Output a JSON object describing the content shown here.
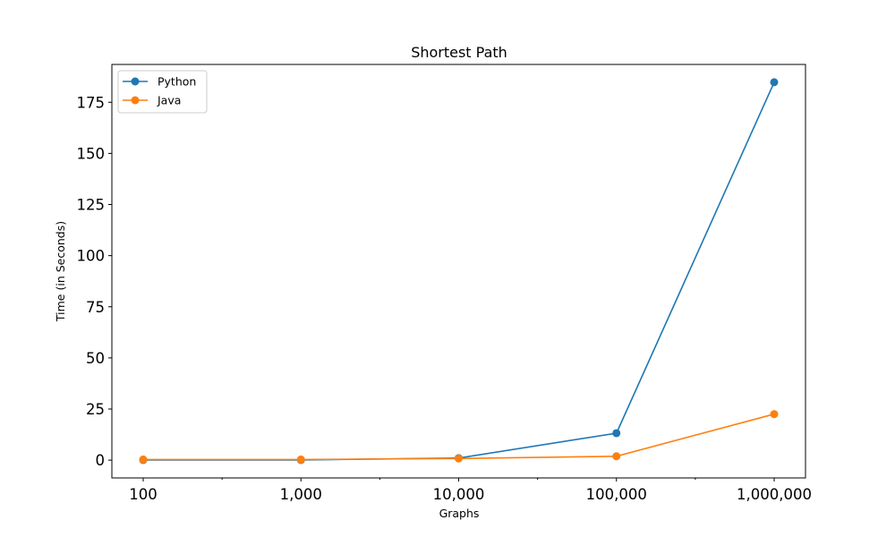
{
  "chart_data": {
    "type": "line",
    "title": "Shortest Path",
    "xlabel": "Graphs",
    "ylabel": "Time (in Seconds)",
    "x_scale": "log",
    "x": [
      100,
      1000,
      10000,
      100000,
      1000000
    ],
    "x_tick_labels": [
      "100",
      "1,000",
      "10,000",
      "100,000",
      "1,000,000"
    ],
    "y_ticks": [
      0,
      25,
      50,
      75,
      100,
      125,
      150,
      175
    ],
    "ylim": [
      -8.7,
      193.5
    ],
    "grid": false,
    "legend_position": "upper-left",
    "series": [
      {
        "name": "Python",
        "color": "#1f77b4",
        "marker": "circle",
        "values": [
          0.1,
          0.1,
          1.0,
          13.2,
          184.8
        ]
      },
      {
        "name": "Java",
        "color": "#ff7f0e",
        "marker": "circle",
        "values": [
          0.3,
          0.3,
          0.8,
          1.9,
          22.5
        ]
      }
    ]
  }
}
